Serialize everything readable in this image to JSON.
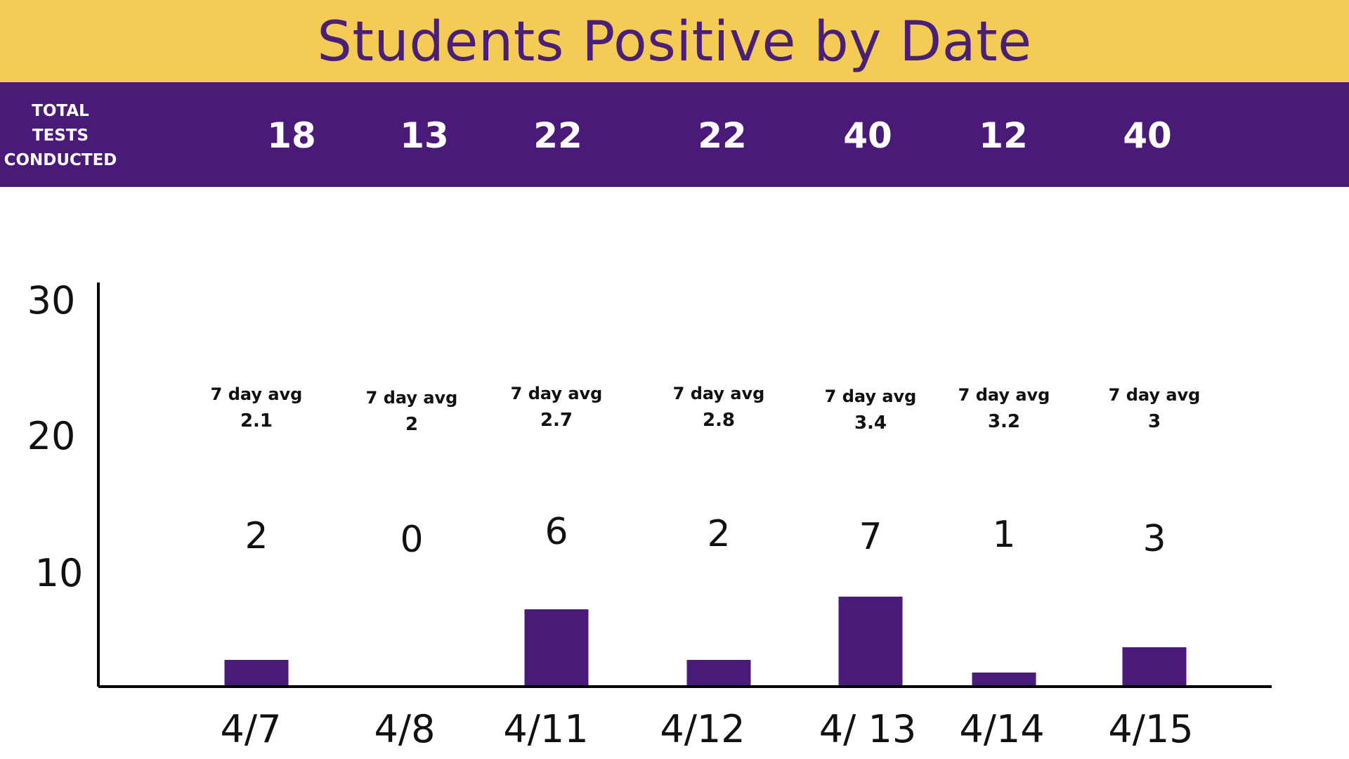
{
  "title": "Students Positive by Date",
  "tests_header": {
    "label_lines": [
      "TOTAL",
      "TESTS",
      "CONDUCTED"
    ],
    "counts": [
      "18",
      "13",
      "22",
      "22",
      "40",
      "12",
      "40"
    ]
  },
  "colors": {
    "title_band": "#f3cb55",
    "title_text": "#4a1f78",
    "tests_band": "#4a1a78",
    "bar": "#4a1a78",
    "axis": "#000000"
  },
  "chart_data": {
    "type": "bar",
    "title": "Students Positive by Date",
    "categories": [
      "4/7",
      "4/8",
      "4/11",
      "4/12",
      "4/ 13",
      "4/14",
      "4/15"
    ],
    "values": [
      2,
      0,
      6,
      2,
      7,
      1,
      3
    ],
    "value_labels": [
      "2",
      "0",
      "6",
      "2",
      "7",
      "1",
      "3"
    ],
    "seven_day_avg_label": "7 day avg",
    "seven_day_avg": [
      "2.1",
      "2",
      "2.7",
      "2.8",
      "3.4",
      "3.2",
      "3"
    ],
    "y_ticks": [
      "10",
      "20",
      "30"
    ],
    "grid": false,
    "legend": "none"
  }
}
